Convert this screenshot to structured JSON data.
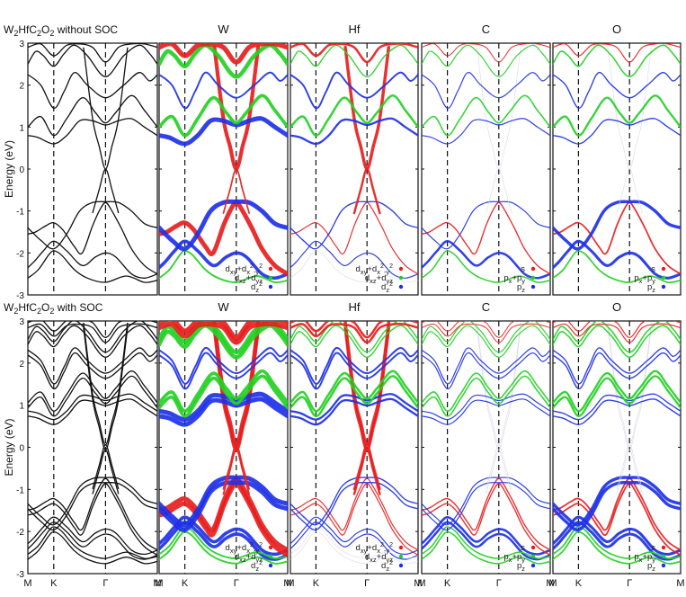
{
  "chart_data": {
    "type": "line",
    "kind": "orbital-projected electronic band structure",
    "ylabel": "Energy (eV)",
    "ylim": [
      -3,
      3
    ],
    "yticks": [
      "3",
      "2",
      "1",
      "0",
      "-1",
      "-2",
      "-3"
    ],
    "kpath": [
      {
        "label": "M",
        "k": 0.0
      },
      {
        "label": "K",
        "k": 0.2
      },
      {
        "label": "Γ",
        "k": 0.6
      },
      {
        "label": "M",
        "k": 1.0
      }
    ],
    "rows": [
      {
        "title": "W2HfC2O2 without SOC",
        "panels": [
          {
            "title": "",
            "projection": "total"
          },
          {
            "title": "W",
            "projection": "W d",
            "legend": [
              {
                "label": "dxy+dx2-y2",
                "color": "#e81b1b"
              },
              {
                "label": "dxz+dyz",
                "color": "#20d020"
              },
              {
                "label": "dz2",
                "color": "#1b2ee8"
              }
            ]
          },
          {
            "title": "Hf",
            "projection": "Hf d",
            "legend": [
              {
                "label": "dxy+dx2-y2",
                "color": "#e81b1b"
              },
              {
                "label": "dxz+dyz",
                "color": "#20d020"
              },
              {
                "label": "dz2",
                "color": "#1b2ee8"
              }
            ]
          },
          {
            "title": "C",
            "projection": "C s/p",
            "legend": [
              {
                "label": "s",
                "color": "#e81b1b"
              },
              {
                "label": "px+py",
                "color": "#20d020"
              },
              {
                "label": "pz",
                "color": "#1b2ee8"
              }
            ]
          },
          {
            "title": "O",
            "projection": "O s/p",
            "legend": [
              {
                "label": "s",
                "color": "#e81b1b"
              },
              {
                "label": "px+py",
                "color": "#20d020"
              },
              {
                "label": "pz",
                "color": "#1b2ee8"
              }
            ]
          }
        ]
      },
      {
        "title": "W2HfC2O2 with SOC",
        "panels": [
          {
            "title": "",
            "projection": "total"
          },
          {
            "title": "W",
            "projection": "W d",
            "legend": [
              {
                "label": "dxy+dx2-y2",
                "color": "#e81b1b"
              },
              {
                "label": "dxz+dyz",
                "color": "#20d020"
              },
              {
                "label": "dz2",
                "color": "#1b2ee8"
              }
            ]
          },
          {
            "title": "Hf",
            "projection": "Hf d",
            "legend": [
              {
                "label": "dxy+dx2-y2",
                "color": "#e81b1b"
              },
              {
                "label": "dxz+dyz",
                "color": "#20d020"
              },
              {
                "label": "dz2",
                "color": "#1b2ee8"
              }
            ]
          },
          {
            "title": "C",
            "projection": "C s/p",
            "legend": [
              {
                "label": "s",
                "color": "#e81b1b"
              },
              {
                "label": "px+py",
                "color": "#20d020"
              },
              {
                "label": "pz",
                "color": "#1b2ee8"
              }
            ]
          },
          {
            "title": "O",
            "projection": "O s/p",
            "legend": [
              {
                "label": "s",
                "color": "#e81b1b"
              },
              {
                "label": "px+py",
                "color": "#20d020"
              },
              {
                "label": "pz",
                "color": "#1b2ee8"
              }
            ]
          }
        ]
      }
    ],
    "bands": [
      {
        "name": "lowest-1",
        "pts": [
          [
            0,
            -2.35
          ],
          [
            0.05,
            -2.2
          ],
          [
            0.12,
            -1.95
          ],
          [
            0.2,
            -1.72
          ],
          [
            0.3,
            -1.95
          ],
          [
            0.42,
            -2.3
          ],
          [
            0.52,
            -2.1
          ],
          [
            0.6,
            -2.0
          ],
          [
            0.68,
            -2.1
          ],
          [
            0.8,
            -2.5
          ],
          [
            0.9,
            -2.6
          ],
          [
            1.0,
            -2.5
          ]
        ],
        "orbital": "dz2"
      },
      {
        "name": "lowest-2",
        "pts": [
          [
            0,
            -2.6
          ],
          [
            0.08,
            -2.4
          ],
          [
            0.16,
            -2.05
          ],
          [
            0.2,
            -1.95
          ],
          [
            0.26,
            -2.05
          ],
          [
            0.36,
            -2.4
          ],
          [
            0.46,
            -2.6
          ],
          [
            0.6,
            -2.7
          ],
          [
            0.76,
            -2.55
          ],
          [
            0.9,
            -2.7
          ],
          [
            1.0,
            -2.65
          ]
        ],
        "orbital": "dxz+dyz"
      },
      {
        "name": "valence-2",
        "pts": [
          [
            0,
            -1.55
          ],
          [
            0.06,
            -1.5
          ],
          [
            0.14,
            -1.35
          ],
          [
            0.2,
            -1.28
          ],
          [
            0.27,
            -1.45
          ],
          [
            0.36,
            -1.85
          ],
          [
            0.42,
            -2.0
          ],
          [
            0.5,
            -1.35
          ],
          [
            0.56,
            -0.95
          ],
          [
            0.6,
            -0.8
          ],
          [
            0.64,
            -0.95
          ],
          [
            0.72,
            -1.4
          ],
          [
            0.8,
            -1.9
          ],
          [
            0.9,
            -2.3
          ],
          [
            1.0,
            -2.5
          ]
        ],
        "orbital": "dxy+dx2-y2"
      },
      {
        "name": "valence-1",
        "pts": [
          [
            0,
            -1.4
          ],
          [
            0.1,
            -1.7
          ],
          [
            0.2,
            -1.9
          ],
          [
            0.3,
            -1.55
          ],
          [
            0.4,
            -1.0
          ],
          [
            0.5,
            -0.8
          ],
          [
            0.6,
            -0.78
          ],
          [
            0.7,
            -0.8
          ],
          [
            0.8,
            -1.0
          ],
          [
            0.9,
            -1.3
          ],
          [
            1.0,
            -1.4
          ]
        ],
        "orbital": "dz2"
      },
      {
        "name": "cone-up",
        "pts": [
          [
            0.43,
            2.9
          ],
          [
            0.5,
            1.2
          ],
          [
            0.55,
            0.55
          ],
          [
            0.6,
            0.0
          ],
          [
            0.65,
            0.55
          ],
          [
            0.7,
            1.2
          ],
          [
            0.77,
            2.9
          ]
        ],
        "orbital": "dxy+dx2-y2"
      },
      {
        "name": "cone-down",
        "pts": [
          [
            0.5,
            -1.05
          ],
          [
            0.55,
            -0.5
          ],
          [
            0.6,
            0.0
          ],
          [
            0.65,
            -0.5
          ],
          [
            0.7,
            -1.05
          ]
        ],
        "orbital": "dxy+dx2-y2"
      },
      {
        "name": "conduction-1",
        "pts": [
          [
            0,
            0.8
          ],
          [
            0.08,
            0.75
          ],
          [
            0.2,
            0.6
          ],
          [
            0.3,
            0.8
          ],
          [
            0.4,
            1.15
          ],
          [
            0.5,
            1.15
          ],
          [
            0.6,
            1.05
          ],
          [
            0.7,
            1.15
          ],
          [
            0.8,
            1.2
          ],
          [
            0.9,
            1.0
          ],
          [
            1.0,
            0.8
          ]
        ],
        "orbital": "dz2"
      },
      {
        "name": "conduction-2",
        "pts": [
          [
            0,
            1.0
          ],
          [
            0.1,
            1.25
          ],
          [
            0.2,
            0.8
          ],
          [
            0.3,
            1.2
          ],
          [
            0.42,
            1.7
          ],
          [
            0.52,
            1.35
          ],
          [
            0.6,
            1.1
          ],
          [
            0.68,
            1.35
          ],
          [
            0.8,
            1.75
          ],
          [
            0.9,
            1.4
          ],
          [
            1.0,
            1.0
          ]
        ],
        "orbital": "dxz+dyz"
      },
      {
        "name": "conduction-3",
        "pts": [
          [
            0,
            2.25
          ],
          [
            0.1,
            2.0
          ],
          [
            0.2,
            1.45
          ],
          [
            0.28,
            1.85
          ],
          [
            0.36,
            2.3
          ],
          [
            0.46,
            2.0
          ],
          [
            0.6,
            1.7
          ],
          [
            0.74,
            2.0
          ],
          [
            0.86,
            2.3
          ],
          [
            0.94,
            2.1
          ],
          [
            1.0,
            2.25
          ]
        ],
        "orbital": "dz2"
      },
      {
        "name": "conduction-4",
        "pts": [
          [
            0,
            2.5
          ],
          [
            0.06,
            2.8
          ],
          [
            0.12,
            2.7
          ],
          [
            0.2,
            2.45
          ],
          [
            0.28,
            2.75
          ],
          [
            0.36,
            2.95
          ],
          [
            0.46,
            2.7
          ],
          [
            0.6,
            2.2
          ],
          [
            0.74,
            2.7
          ],
          [
            0.86,
            2.95
          ],
          [
            0.94,
            2.75
          ],
          [
            1.0,
            2.5
          ]
        ],
        "orbital": "dxz+dyz"
      },
      {
        "name": "conduction-5",
        "pts": [
          [
            0,
            2.9
          ],
          [
            0.1,
            2.98
          ],
          [
            0.2,
            2.7
          ],
          [
            0.3,
            2.95
          ],
          [
            0.4,
            2.98
          ],
          [
            0.5,
            2.9
          ],
          [
            0.6,
            2.55
          ],
          [
            0.7,
            2.9
          ],
          [
            0.8,
            2.98
          ],
          [
            0.9,
            2.98
          ],
          [
            1.0,
            2.9
          ]
        ],
        "orbital": "dxy+dx2-y2"
      }
    ],
    "weights": {
      "W": {
        "lowest-1": 1.5,
        "lowest-2": 0.6,
        "valence-2": 2.2,
        "valence-1": 2.2,
        "cone-up": 1.8,
        "cone-down": 0.5,
        "conduction-1": 2.2,
        "conduction-2": 1.5,
        "conduction-3": 0.6,
        "conduction-4": 2.0,
        "conduction-5": 2.4
      },
      "Hf": {
        "lowest-1": 0.2,
        "lowest-2": 0.0,
        "valence-2": 0.2,
        "valence-1": 0.3,
        "cone-up": 1.4,
        "cone-down": 0.9,
        "conduction-1": 0.8,
        "conduction-2": 0.9,
        "conduction-3": 0.6,
        "conduction-4": 0.3,
        "conduction-5": 0.9
      },
      "C": {
        "lowest-1": 0.9,
        "lowest-2": 0.4,
        "valence-2": 0.3,
        "valence-1": 0.2,
        "cone-up": 0.0,
        "cone-down": 0.0,
        "conduction-1": 0.2,
        "conduction-2": 0.4,
        "conduction-3": 0.2,
        "conduction-4": 0.2,
        "conduction-5": 0.1
      },
      "O": {
        "lowest-1": 1.2,
        "lowest-2": 0.5,
        "valence-2": 0.5,
        "valence-1": 1.4,
        "cone-up": 0.0,
        "cone-down": 0.0,
        "conduction-1": 0.3,
        "conduction-2": 0.8,
        "conduction-3": 0.3,
        "conduction-4": 0.4,
        "conduction-5": 0.2
      }
    }
  }
}
